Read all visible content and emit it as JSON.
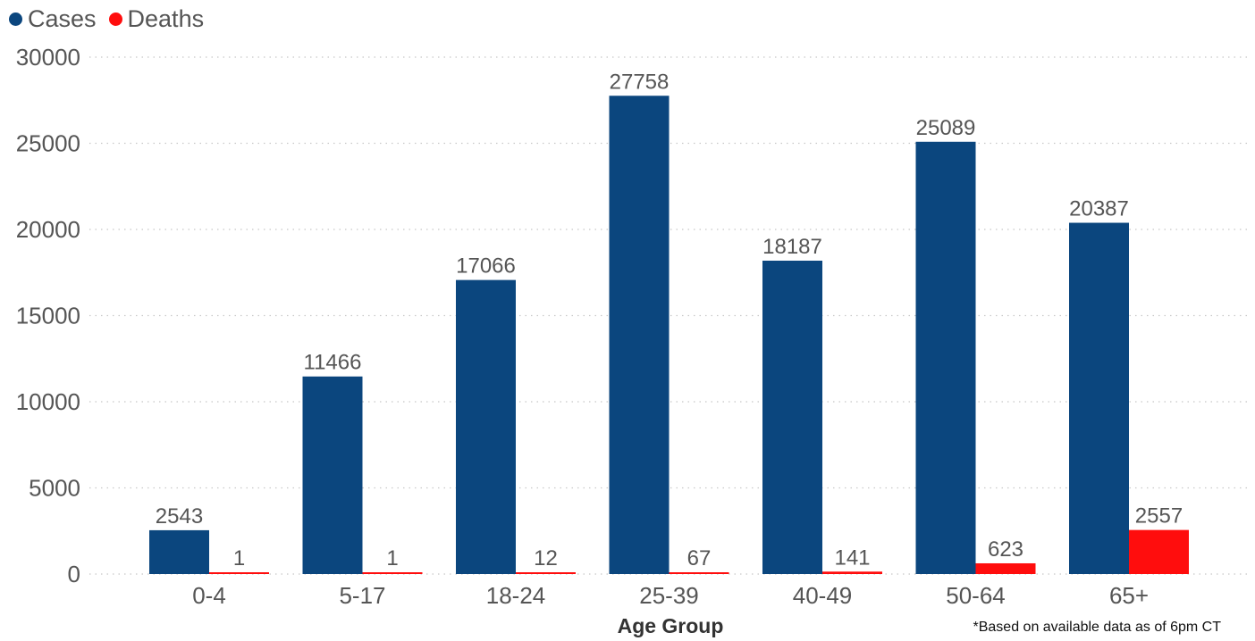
{
  "chart_data": {
    "type": "bar",
    "categories": [
      "0-4",
      "5-17",
      "18-24",
      "25-39",
      "40-49",
      "50-64",
      "65+"
    ],
    "series": [
      {
        "name": "Cases",
        "color": "#0b467e",
        "values": [
          2543,
          11466,
          17066,
          27758,
          18187,
          25089,
          20387
        ]
      },
      {
        "name": "Deaths",
        "color": "#ff0d0d",
        "values": [
          1,
          1,
          12,
          67,
          141,
          623,
          2557
        ]
      }
    ],
    "xlabel": "Age Group",
    "ylabel": "",
    "ylim": [
      0,
      30000
    ],
    "yticks": [
      0,
      5000,
      10000,
      15000,
      20000,
      25000,
      30000
    ],
    "grid": true,
    "legend_position": "top-left",
    "footnote": "*Based on available data as of 6pm CT"
  }
}
